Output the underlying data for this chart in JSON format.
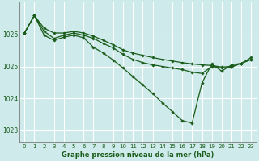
{
  "title": "Graphe pression niveau de la mer (hPa)",
  "background_color": "#ceeaea",
  "plot_bg_color": "#ceeaea",
  "grid_color": "#ffffff",
  "line_color": "#1a5c1a",
  "marker_color": "#1a5c1a",
  "ylim": [
    1022.6,
    1027.0
  ],
  "xlim": [
    -0.5,
    23.5
  ],
  "yticks": [
    1023,
    1024,
    1025,
    1026
  ],
  "xticks": [
    0,
    1,
    2,
    3,
    4,
    5,
    6,
    7,
    8,
    9,
    10,
    11,
    12,
    13,
    14,
    15,
    16,
    17,
    18,
    19,
    20,
    21,
    22,
    23
  ],
  "series": [
    [
      1026.05,
      1026.6,
      1026.2,
      1026.05,
      1026.05,
      1026.1,
      1026.05,
      1025.95,
      1025.82,
      1025.68,
      1025.52,
      1025.42,
      1025.35,
      1025.28,
      1025.22,
      1025.17,
      1025.12,
      1025.08,
      1025.05,
      1025.03,
      1024.98,
      1025.0,
      1025.1,
      1025.22
    ],
    [
      1026.05,
      1026.6,
      1026.1,
      1025.88,
      1025.98,
      1026.05,
      1025.98,
      1025.88,
      1025.72,
      1025.58,
      1025.38,
      1025.22,
      1025.12,
      1025.05,
      1025.0,
      1024.95,
      1024.9,
      1024.82,
      1024.78,
      1025.0,
      1024.95,
      1024.98,
      1025.1,
      1025.22
    ],
    [
      1026.05,
      1026.6,
      1025.98,
      1025.82,
      1025.92,
      1025.98,
      1025.9,
      1025.6,
      1025.42,
      1025.2,
      1024.95,
      1024.68,
      1024.42,
      1024.15,
      1023.85,
      1023.58,
      1023.3,
      1023.22,
      1024.48,
      1025.08,
      1024.85,
      1025.05,
      1025.1,
      1025.28
    ]
  ]
}
